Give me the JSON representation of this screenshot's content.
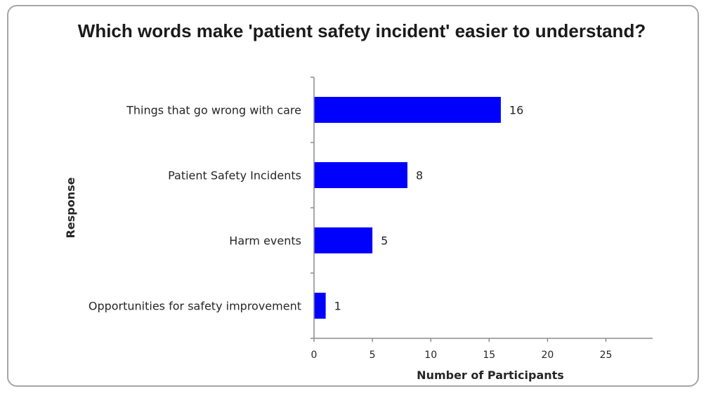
{
  "chart_data": {
    "type": "bar",
    "orientation": "horizontal",
    "title": "Which words make 'patient safety incident' easier to understand?",
    "xlabel": "Number of Participants",
    "ylabel": "Response",
    "categories": [
      "Things that go wrong with care",
      "Patient Safety Incidents",
      "Harm events",
      "Opportunities for safety improvement"
    ],
    "values": [
      16,
      8,
      5,
      1
    ],
    "data_labels": [
      "16",
      "8",
      "5",
      "1"
    ],
    "xlim": [
      0,
      29
    ],
    "xticks": [
      0,
      5,
      10,
      15,
      20,
      25
    ],
    "grid": false,
    "legend": "none",
    "bar_color": "#0000ff"
  }
}
